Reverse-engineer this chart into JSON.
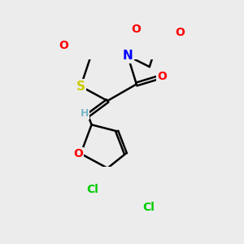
{
  "background_color": "#ececec",
  "atom_colors": {
    "C": "#000000",
    "H": "#7ab8c8",
    "N": "#0000ff",
    "O": "#ff0000",
    "S": "#cccc00",
    "Cl": "#00cc00"
  },
  "bond_color": "#000000",
  "bond_width": 1.8,
  "font_size_atoms": 10
}
